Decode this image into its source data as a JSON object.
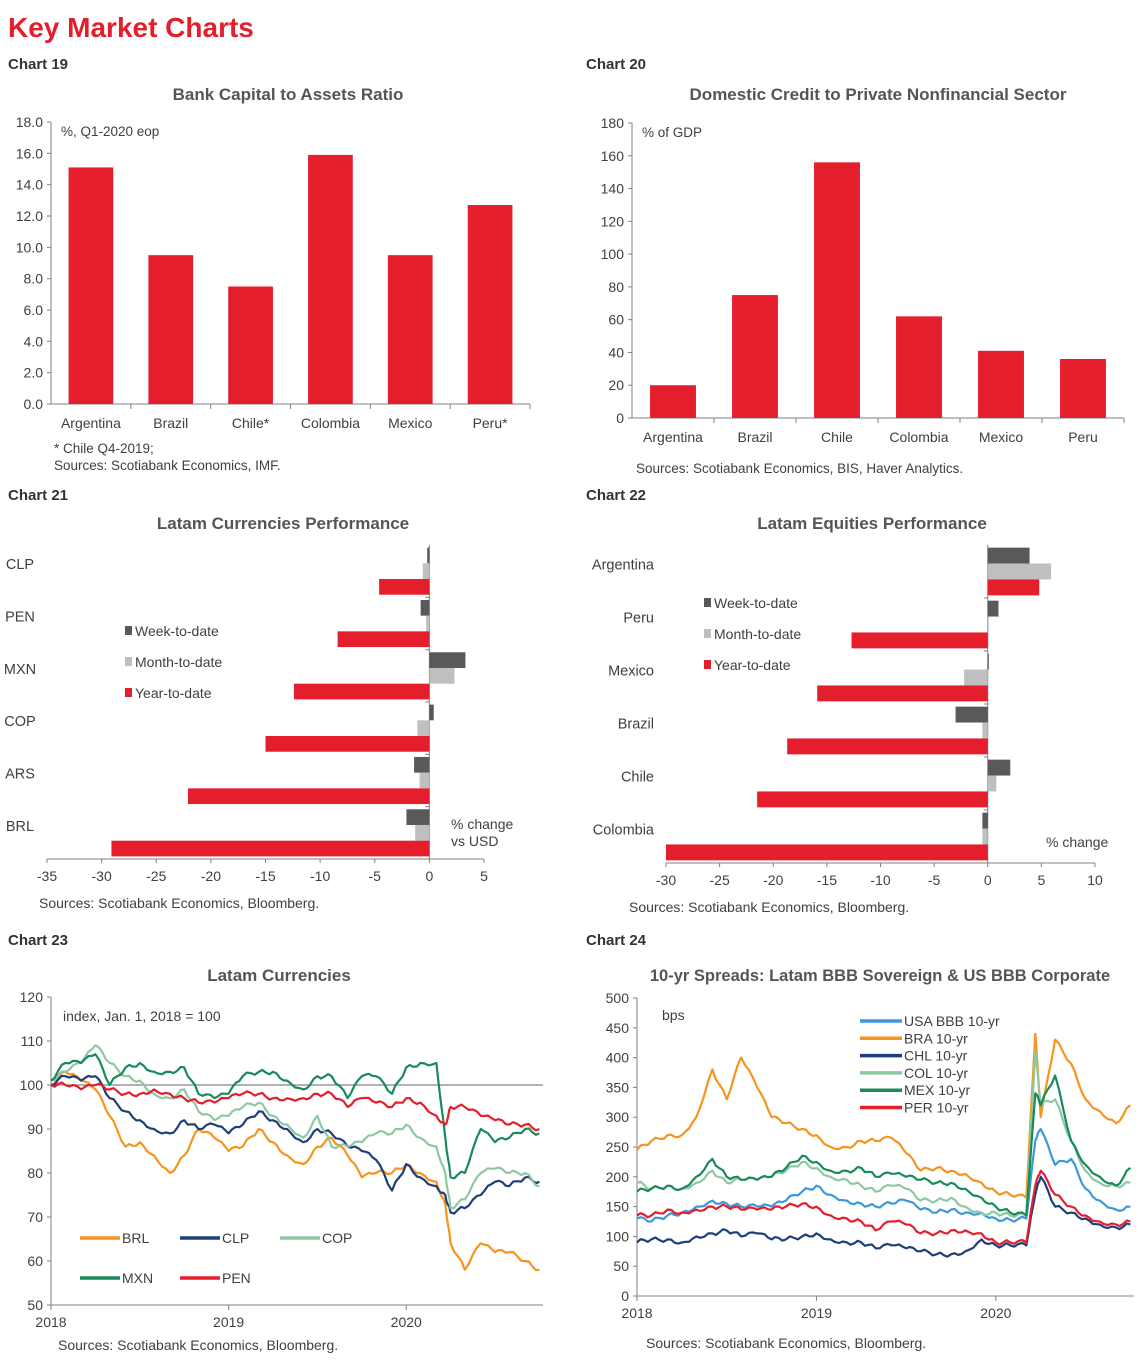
{
  "page_title": "Key Market Charts",
  "chart_data": [
    {
      "id": "chart19",
      "label": "Chart 19",
      "type": "bar",
      "title": "Bank Capital to Assets Ratio",
      "unit_note": "%, Q1-2020 eop",
      "categories": [
        "Argentina",
        "Brazil",
        "Chile*",
        "Colombia",
        "Mexico",
        "Peru*"
      ],
      "values": [
        15.1,
        9.5,
        7.5,
        15.9,
        9.5,
        12.7
      ],
      "ylim": [
        0,
        18
      ],
      "yticks": [
        "0.0",
        "2.0",
        "4.0",
        "6.0",
        "8.0",
        "10.0",
        "12.0",
        "14.0",
        "16.0",
        "18.0"
      ],
      "color": "#e41e2d",
      "footnotes": [
        "* Chile Q4-2019;",
        "Sources: Scotiabank Economics, IMF."
      ]
    },
    {
      "id": "chart20",
      "label": "Chart 20",
      "type": "bar",
      "title": "Domestic Credit to Private Nonfinancial Sector",
      "unit_note": "% of GDP",
      "categories": [
        "Argentina",
        "Brazil",
        "Chile",
        "Colombia",
        "Mexico",
        "Peru"
      ],
      "values": [
        20,
        75,
        156,
        62,
        41,
        36
      ],
      "ylim": [
        0,
        180
      ],
      "yticks": [
        "0",
        "20",
        "40",
        "60",
        "80",
        "100",
        "120",
        "140",
        "160",
        "180"
      ],
      "color": "#e41e2d",
      "footnotes": [
        "Sources: Scotiabank Economics, BIS, Haver Analytics."
      ]
    },
    {
      "id": "chart21",
      "label": "Chart 21",
      "type": "bar",
      "orientation": "horizontal",
      "title": "Latam Currencies Performance",
      "unit_note": [
        "% change",
        "vs USD"
      ],
      "categories": [
        "CLP",
        "PEN",
        "MXN",
        "COP",
        "ARS",
        "BRL"
      ],
      "series": [
        {
          "name": "Week-to-date",
          "color": "#595959",
          "values": [
            -0.2,
            -0.8,
            3.3,
            0.4,
            -1.4,
            -2.1
          ]
        },
        {
          "name": "Month-to-date",
          "color": "#bfbfbf",
          "values": [
            -0.6,
            -0.3,
            2.3,
            -1.1,
            -0.9,
            -1.3
          ]
        },
        {
          "name": "Year-to-date",
          "color": "#e41e2d",
          "values": [
            -4.6,
            -8.4,
            -12.4,
            -15.0,
            -22.1,
            -29.1
          ]
        }
      ],
      "xlim": [
        -35,
        5
      ],
      "xticks": [
        "-35",
        "-30",
        "-25",
        "-20",
        "-15",
        "-10",
        "-5",
        "0",
        "5"
      ],
      "legend": "center-left",
      "footnotes": [
        "Sources: Scotiabank Economics, Bloomberg."
      ]
    },
    {
      "id": "chart22",
      "label": "Chart 22",
      "type": "bar",
      "orientation": "horizontal",
      "title": "Latam Equities Performance",
      "unit_note": [
        "% change"
      ],
      "categories": [
        "Argentina",
        "Peru",
        "Mexico",
        "Brazil",
        "Chile",
        "Colombia"
      ],
      "series": [
        {
          "name": "Week-to-date",
          "color": "#595959",
          "values": [
            3.9,
            1.0,
            0.1,
            -3.0,
            2.1,
            -0.5
          ]
        },
        {
          "name": "Month-to-date",
          "color": "#bfbfbf",
          "values": [
            5.9,
            0.0,
            -2.2,
            -0.5,
            0.8,
            -0.5
          ]
        },
        {
          "name": "Year-to-date",
          "color": "#e41e2d",
          "values": [
            4.8,
            -12.7,
            -15.9,
            -18.7,
            -21.5,
            -30.0
          ]
        }
      ],
      "xlim": [
        -30,
        10
      ],
      "xticks": [
        "-30",
        "-25",
        "-20",
        "-15",
        "-10",
        "-5",
        "0",
        "5",
        "10"
      ],
      "legend": "center-left",
      "footnotes": [
        "Sources: Scotiabank Economics, Bloomberg."
      ]
    },
    {
      "id": "chart23",
      "label": "Chart 23",
      "type": "line",
      "title": "Latam Currencies",
      "unit_note": "index, Jan. 1, 2018 = 100",
      "x": [
        2018.0,
        2018.08,
        2018.17,
        2018.25,
        2018.33,
        2018.42,
        2018.5,
        2018.58,
        2018.67,
        2018.75,
        2018.83,
        2018.92,
        2019.0,
        2019.08,
        2019.17,
        2019.25,
        2019.33,
        2019.42,
        2019.5,
        2019.58,
        2019.67,
        2019.75,
        2019.83,
        2019.92,
        2020.0,
        2020.08,
        2020.17,
        2020.22,
        2020.25,
        2020.33,
        2020.42,
        2020.5,
        2020.58,
        2020.67,
        2020.75
      ],
      "xticks": [
        "2018",
        "2019",
        "2020"
      ],
      "xlim": [
        2018.0,
        2020.77
      ],
      "ylim": [
        50,
        120
      ],
      "yticks": [
        "50",
        "60",
        "70",
        "80",
        "90",
        "100",
        "110",
        "120"
      ],
      "reference_line": 100,
      "series": [
        {
          "name": "BRL",
          "color": "#f7941d",
          "values": [
            100,
            103,
            101,
            99,
            93,
            86,
            87,
            84,
            80,
            84,
            90,
            88,
            85,
            86,
            90,
            87,
            84,
            82,
            86,
            88,
            84,
            79,
            80,
            80,
            82,
            80,
            78,
            73,
            64,
            58,
            64,
            62,
            62,
            60,
            58
          ]
        },
        {
          "name": "CLP",
          "color": "#1f3f7a",
          "values": [
            100,
            102,
            101,
            102,
            97,
            94,
            92,
            90,
            89,
            92,
            90,
            91,
            89,
            91,
            94,
            92,
            90,
            87,
            90,
            89,
            86,
            85,
            83,
            76,
            82,
            79,
            77,
            75,
            71,
            72,
            75,
            78,
            77,
            79,
            78
          ]
        },
        {
          "name": "COP",
          "color": "#8fc8a0",
          "values": [
            101,
            103,
            105,
            109,
            105,
            102,
            101,
            98,
            97,
            99,
            94,
            92,
            93,
            95,
            96,
            93,
            91,
            88,
            93,
            86,
            86,
            87,
            89,
            89,
            91,
            88,
            86,
            80,
            72,
            74,
            80,
            81,
            80,
            80,
            77
          ]
        },
        {
          "name": "MXN",
          "color": "#1a8a5a",
          "values": [
            101,
            105,
            105,
            107,
            100,
            104,
            105,
            103,
            103,
            104,
            98,
            97,
            98,
            102,
            103,
            103,
            101,
            99,
            102,
            102,
            97,
            102,
            102,
            98,
            104,
            105,
            105,
            88,
            79,
            80,
            90,
            87,
            88,
            90,
            89
          ]
        },
        {
          "name": "PEN",
          "color": "#e41e2d",
          "values": [
            100,
            100,
            99,
            100,
            99,
            98,
            98,
            99,
            98,
            97,
            96,
            96,
            97,
            98,
            98,
            97,
            97,
            97,
            98,
            98,
            95,
            97,
            96,
            95,
            97,
            96,
            93,
            91,
            95,
            95,
            93,
            92,
            91,
            91,
            90
          ]
        }
      ],
      "legend": "bottom-left",
      "footnotes": [
        "Sources: Scotiabank Economics, Bloomberg."
      ]
    },
    {
      "id": "chart24",
      "label": "Chart 24",
      "type": "line",
      "title": "10-yr Spreads: Latam BBB Sovereign & US BBB Corporate",
      "unit_note": "bps",
      "x": [
        2018.0,
        2018.08,
        2018.17,
        2018.25,
        2018.33,
        2018.42,
        2018.5,
        2018.58,
        2018.67,
        2018.75,
        2018.83,
        2018.92,
        2019.0,
        2019.08,
        2019.17,
        2019.25,
        2019.33,
        2019.42,
        2019.5,
        2019.58,
        2019.67,
        2019.75,
        2019.83,
        2019.92,
        2020.0,
        2020.08,
        2020.17,
        2020.22,
        2020.25,
        2020.33,
        2020.42,
        2020.5,
        2020.58,
        2020.67,
        2020.75
      ],
      "xticks": [
        "2018",
        "2019",
        "2020"
      ],
      "xlim": [
        2018.0,
        2020.77
      ],
      "ylim": [
        0,
        500
      ],
      "yticks": [
        "0",
        "50",
        "100",
        "150",
        "200",
        "250",
        "300",
        "350",
        "400",
        "450",
        "500"
      ],
      "series": [
        {
          "name": "USA BBB 10-yr",
          "color": "#3a9ad9",
          "values": [
            130,
            125,
            135,
            140,
            150,
            160,
            155,
            150,
            150,
            150,
            160,
            175,
            185,
            170,
            160,
            155,
            150,
            155,
            160,
            145,
            140,
            145,
            140,
            140,
            130,
            128,
            130,
            260,
            280,
            220,
            230,
            180,
            160,
            145,
            150
          ]
        },
        {
          "name": "BRA 10-yr",
          "color": "#f7941d",
          "values": [
            245,
            260,
            270,
            270,
            300,
            380,
            330,
            400,
            350,
            300,
            290,
            280,
            270,
            250,
            250,
            260,
            260,
            265,
            240,
            210,
            215,
            210,
            205,
            190,
            175,
            170,
            165,
            440,
            300,
            430,
            390,
            330,
            310,
            290,
            320
          ]
        },
        {
          "name": "CHL 10-yr",
          "color": "#1f3f7a",
          "values": [
            90,
            95,
            95,
            90,
            100,
            105,
            110,
            100,
            105,
            95,
            95,
            100,
            105,
            95,
            90,
            90,
            80,
            85,
            80,
            75,
            70,
            70,
            75,
            95,
            85,
            85,
            85,
            170,
            200,
            150,
            140,
            130,
            120,
            115,
            120
          ]
        },
        {
          "name": "COL 10-yr",
          "color": "#8fc8a0",
          "values": [
            190,
            180,
            185,
            180,
            190,
            210,
            190,
            195,
            195,
            200,
            210,
            225,
            215,
            200,
            195,
            185,
            175,
            185,
            180,
            160,
            160,
            165,
            150,
            140,
            140,
            135,
            135,
            410,
            320,
            330,
            260,
            210,
            190,
            185,
            190
          ]
        },
        {
          "name": "MEX 10-yr",
          "color": "#1a8a5a",
          "values": [
            175,
            180,
            185,
            180,
            200,
            230,
            200,
            195,
            195,
            200,
            215,
            235,
            225,
            210,
            210,
            215,
            200,
            205,
            200,
            195,
            190,
            190,
            180,
            165,
            150,
            140,
            135,
            340,
            320,
            370,
            260,
            220,
            200,
            185,
            215
          ]
        },
        {
          "name": "PER 10-yr",
          "color": "#e41e2d",
          "values": [
            135,
            135,
            145,
            140,
            145,
            150,
            150,
            145,
            145,
            145,
            150,
            155,
            150,
            135,
            130,
            125,
            110,
            125,
            120,
            105,
            105,
            110,
            110,
            105,
            90,
            90,
            90,
            185,
            210,
            170,
            150,
            135,
            125,
            120,
            125
          ]
        }
      ],
      "legend": "top-center",
      "footnotes": [
        "Sources: Scotiabank Economics, Bloomberg."
      ]
    }
  ]
}
